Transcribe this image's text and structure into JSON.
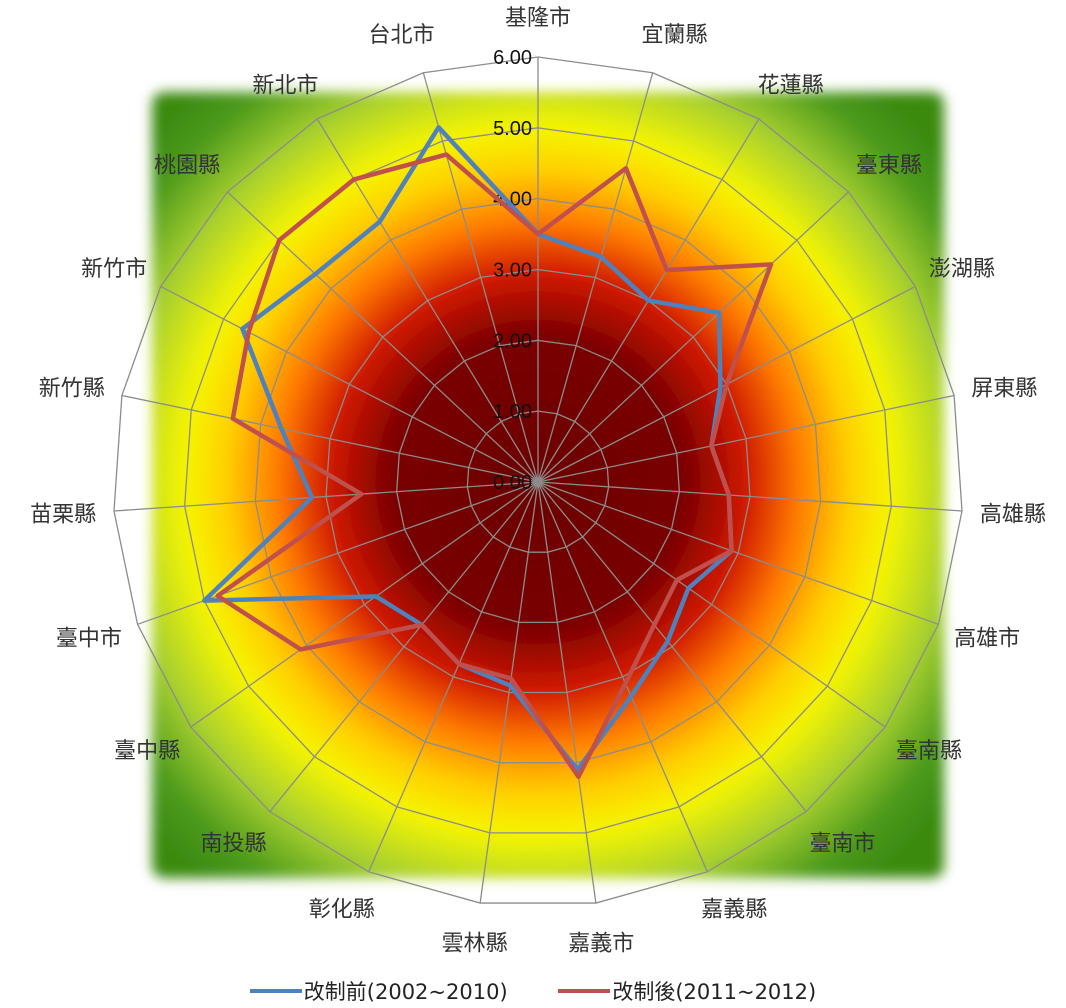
{
  "chart_data": {
    "type": "radar",
    "categories": [
      "基隆市",
      "宜蘭縣",
      "花蓮縣",
      "臺東縣",
      "澎湖縣",
      "屏東縣",
      "高雄縣",
      "高雄市",
      "臺南縣",
      "臺南市",
      "嘉義縣",
      "嘉義市",
      "雲林縣",
      "彰化縣",
      "南投縣",
      "臺中縣",
      "臺中市",
      "苗栗縣",
      "新竹縣",
      "新竹市",
      "桃園縣",
      "新北市",
      "台北市"
    ],
    "series": [
      {
        "name": "改制前(2002~2010)",
        "color": "#4f81bd",
        "values": [
          3.5,
          3.3,
          3.0,
          3.5,
          2.9,
          2.5,
          2.7,
          2.9,
          2.6,
          2.9,
          3.3,
          4.1,
          2.9,
          2.8,
          2.6,
          2.8,
          5.0,
          3.2,
          3.7,
          4.7,
          4.3,
          4.3,
          5.2
        ]
      },
      {
        "name": "改制後(2011~2012)",
        "color": "#c0504d",
        "values": [
          3.5,
          4.6,
          3.5,
          4.5,
          3.0,
          2.5,
          2.7,
          2.9,
          2.4,
          2.6,
          3.1,
          4.2,
          2.8,
          2.8,
          2.6,
          4.1,
          4.8,
          2.5,
          4.4,
          4.6,
          5.0,
          5.0,
          4.8
        ]
      }
    ],
    "radial_ticks": [
      "0.00",
      "1.00",
      "2.00",
      "3.00",
      "4.00",
      "5.00",
      "6.00"
    ],
    "rmax": 6,
    "grid": true,
    "legend_position": "bottom"
  }
}
